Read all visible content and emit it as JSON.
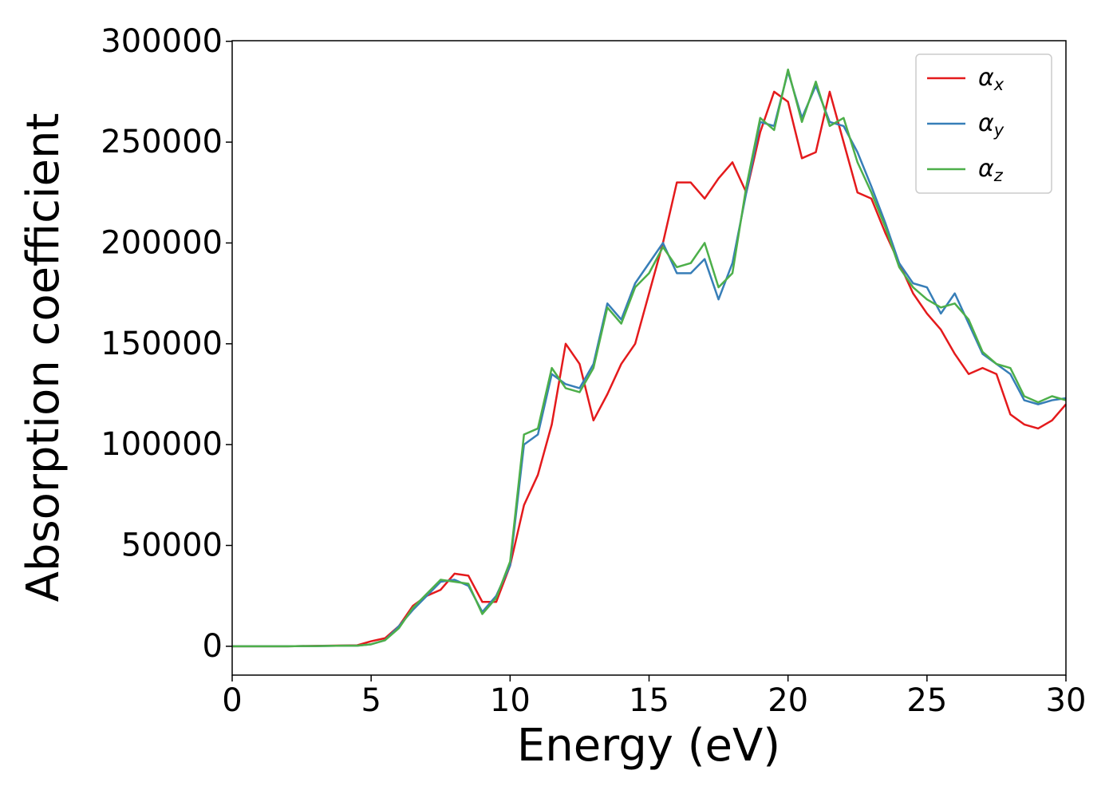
{
  "chart_data": {
    "type": "line",
    "xlabel": "Energy (eV)",
    "ylabel": "Absorption coefficient",
    "xlim": [
      0,
      30
    ],
    "xticks": [
      0,
      5,
      10,
      15,
      20,
      25,
      30
    ],
    "ylim": [
      -14300,
      300300
    ],
    "yticks": [
      0,
      50000,
      100000,
      150000,
      200000,
      250000,
      300000
    ],
    "grid": false,
    "legend": "upper-right",
    "x": [
      0,
      0.5,
      1,
      1.5,
      2,
      2.5,
      3,
      3.5,
      4,
      4.5,
      5,
      5.5,
      6,
      6.5,
      7,
      7.5,
      8,
      8.5,
      9,
      9.5,
      10,
      10.5,
      11,
      11.5,
      12,
      12.5,
      13,
      13.5,
      14,
      14.5,
      15,
      15.5,
      16,
      16.5,
      17,
      17.5,
      18,
      18.5,
      19,
      19.5,
      20,
      20.5,
      21,
      21.5,
      22,
      22.5,
      23,
      23.5,
      24,
      24.5,
      25,
      25.5,
      26,
      26.5,
      27,
      27.5,
      28,
      28.5,
      29,
      29.5,
      30
    ],
    "series": [
      {
        "name": "αx",
        "color": "#e41a1c",
        "values": [
          0,
          0,
          0,
          0,
          0,
          100,
          200,
          300,
          400,
          500,
          2500,
          4000,
          10000,
          20000,
          25000,
          28000,
          36000,
          35000,
          22000,
          22000,
          40000,
          70000,
          85000,
          110000,
          150000,
          140000,
          112000,
          125000,
          140000,
          150000,
          175000,
          200000,
          230000,
          230000,
          222000,
          232000,
          240000,
          225000,
          255000,
          275000,
          270000,
          242000,
          245000,
          275000,
          250000,
          225000,
          222000,
          205000,
          190000,
          175000,
          165000,
          157000,
          145000,
          135000,
          138000,
          135000,
          115000,
          110000,
          108000,
          112000,
          120000
        ]
      },
      {
        "name": "αy",
        "color": "#377eb8",
        "values": [
          0,
          0,
          0,
          0,
          0,
          100,
          100,
          200,
          300,
          300,
          1000,
          3000,
          10000,
          18000,
          25000,
          32000,
          33000,
          30000,
          17000,
          25000,
          40000,
          100000,
          105000,
          135000,
          130000,
          128000,
          140000,
          170000,
          162000,
          180000,
          190000,
          200000,
          185000,
          185000,
          192000,
          172000,
          190000,
          225000,
          260000,
          258000,
          285000,
          262000,
          278000,
          260000,
          258000,
          245000,
          228000,
          210000,
          190000,
          180000,
          178000,
          165000,
          175000,
          160000,
          145000,
          140000,
          135000,
          122000,
          120000,
          122000,
          123000
        ]
      },
      {
        "name": "αz",
        "color": "#4daf4a",
        "values": [
          0,
          0,
          0,
          0,
          0,
          100,
          100,
          200,
          300,
          300,
          1000,
          3000,
          9000,
          19000,
          26000,
          33000,
          32000,
          31000,
          16000,
          24000,
          42000,
          105000,
          108000,
          138000,
          128000,
          126000,
          138000,
          168000,
          160000,
          178000,
          185000,
          198000,
          188000,
          190000,
          200000,
          178000,
          185000,
          228000,
          262000,
          256000,
          286000,
          260000,
          280000,
          258000,
          262000,
          240000,
          225000,
          208000,
          188000,
          178000,
          172000,
          168000,
          170000,
          162000,
          146000,
          140000,
          138000,
          124000,
          121000,
          124000,
          122000
        ]
      }
    ]
  }
}
